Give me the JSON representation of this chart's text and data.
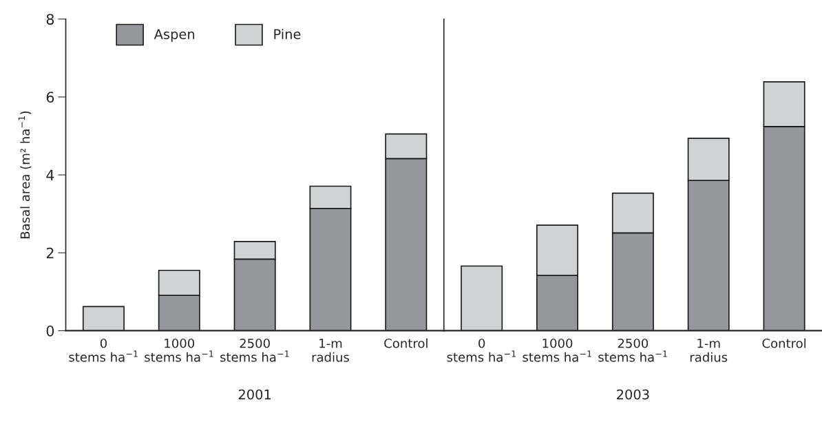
{
  "chart_data": [
    {
      "type": "bar",
      "stacked": true,
      "xlabel": "2001",
      "ylabel": "Basal area (m² ha$^{−1}$)",
      "categories": [
        "0\nstems ha$^{−1}$",
        "1000\nstems ha$^{−1}$",
        "2500\nstems ha$^{−1}$",
        "1-m\nradius",
        "Control"
      ],
      "series": [
        {
          "name": "Aspen",
          "color": "#96979b",
          "values": [
            0,
            0.91,
            1.84,
            3.14,
            4.42
          ]
        },
        {
          "name": "Pine",
          "color": "#d1d2d4",
          "values": [
            0.62,
            0.64,
            0.45,
            0.57,
            0.63
          ]
        }
      ],
      "ylim": [
        0,
        8
      ],
      "yticks": [
        0,
        2,
        4,
        6,
        8
      ],
      "legend": "top left"
    },
    {
      "type": "bar",
      "stacked": true,
      "xlabel": "2003",
      "categories": [
        "0\nstems ha$^{−1}$",
        "1000\nstems ha$^{−1}$",
        "2500\nstems ha$^{−1}$",
        "1-m\nradius",
        "Control"
      ],
      "series": [
        {
          "color": "#96979b",
          "values": [
            0,
            1.42,
            2.51,
            3.86,
            5.24
          ]
        },
        {
          "color": "#d1d2d4",
          "values": [
            1.66,
            1.29,
            1.02,
            1.08,
            1.15
          ]
        }
      ],
      "ylim": [
        0,
        8
      ],
      "yticks": [
        0,
        2,
        4,
        6,
        8
      ],
      "tick_labels": "x",
      "legend": false
    }
  ]
}
